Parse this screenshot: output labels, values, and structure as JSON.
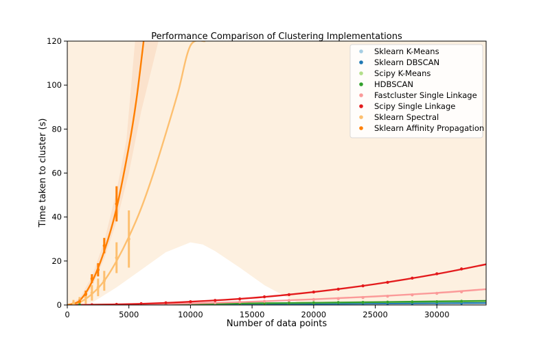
{
  "chart_data": {
    "type": "line",
    "title": "Performance Comparison of Clustering Implementations",
    "xlabel": "Number of data points",
    "ylabel": "Time taken to cluster (s)",
    "xlim": [
      0,
      34000
    ],
    "ylim": [
      0,
      120
    ],
    "xticks": [
      0,
      5000,
      10000,
      15000,
      20000,
      25000,
      30000
    ],
    "yticks": [
      0,
      20,
      40,
      60,
      80,
      100,
      120
    ],
    "grid": false,
    "legend_position": "top-right",
    "series": [
      {
        "name": "Sklearn K-Means",
        "color": "#a6cee3",
        "points": [
          [
            1000,
            0.05
          ],
          [
            2000,
            0.08
          ],
          [
            4000,
            0.12
          ],
          [
            6000,
            0.18
          ],
          [
            8000,
            0.22
          ],
          [
            10000,
            0.28
          ],
          [
            12000,
            0.32
          ],
          [
            14000,
            0.38
          ],
          [
            16000,
            0.42
          ],
          [
            18000,
            0.48
          ],
          [
            20000,
            0.52
          ],
          [
            22000,
            0.58
          ],
          [
            24000,
            0.62
          ],
          [
            26000,
            0.68
          ],
          [
            28000,
            0.72
          ],
          [
            30000,
            0.78
          ],
          [
            32000,
            0.82
          ]
        ],
        "fit": [
          [
            0,
            0
          ],
          [
            34000,
            0.9
          ]
        ]
      },
      {
        "name": "Sklearn DBSCAN",
        "color": "#1f78b4",
        "points": [
          [
            1000,
            0.05
          ],
          [
            2000,
            0.1
          ],
          [
            4000,
            0.15
          ],
          [
            6000,
            0.2
          ],
          [
            8000,
            0.25
          ],
          [
            10000,
            0.3
          ],
          [
            12000,
            0.35
          ],
          [
            14000,
            0.4
          ],
          [
            16000,
            0.45
          ],
          [
            18000,
            0.5
          ],
          [
            20000,
            0.55
          ],
          [
            22000,
            0.6
          ],
          [
            24000,
            0.65
          ],
          [
            26000,
            0.7
          ],
          [
            28000,
            0.75
          ],
          [
            30000,
            0.8
          ],
          [
            32000,
            0.85
          ]
        ],
        "fit": [
          [
            0,
            0
          ],
          [
            34000,
            0.9
          ]
        ]
      },
      {
        "name": "Scipy K-Means",
        "color": "#b2df8a",
        "points": [
          [
            1000,
            0.05
          ],
          [
            2000,
            0.1
          ],
          [
            4000,
            0.2
          ],
          [
            6000,
            0.3
          ],
          [
            8000,
            0.4
          ],
          [
            10000,
            0.5
          ],
          [
            12000,
            0.6
          ],
          [
            14000,
            0.7
          ],
          [
            16000,
            0.8
          ],
          [
            18000,
            0.9
          ],
          [
            20000,
            1.0
          ],
          [
            22000,
            1.1
          ],
          [
            24000,
            1.2
          ],
          [
            26000,
            1.3
          ],
          [
            28000,
            1.4
          ],
          [
            30000,
            1.5
          ],
          [
            32000,
            1.6
          ]
        ],
        "fit": [
          [
            0,
            0
          ],
          [
            34000,
            1.7
          ]
        ]
      },
      {
        "name": "HDBSCAN",
        "color": "#33a02c",
        "points": [
          [
            1000,
            0.05
          ],
          [
            2000,
            0.1
          ],
          [
            4000,
            0.2
          ],
          [
            6000,
            0.3
          ],
          [
            8000,
            0.4
          ],
          [
            10000,
            0.5
          ],
          [
            12000,
            0.6
          ],
          [
            14000,
            0.7
          ],
          [
            16000,
            0.8
          ],
          [
            18000,
            0.9
          ],
          [
            20000,
            1.0
          ],
          [
            22000,
            1.1
          ],
          [
            24000,
            1.2
          ],
          [
            26000,
            1.3
          ],
          [
            28000,
            1.4
          ],
          [
            30000,
            1.5
          ],
          [
            32000,
            1.7
          ]
        ],
        "fit": [
          [
            0,
            0
          ],
          [
            10000,
            0.5
          ],
          [
            20000,
            1.0
          ],
          [
            34000,
            1.9
          ]
        ]
      },
      {
        "name": "Fastcluster Single Linkage",
        "color": "#fb9a99",
        "points": [
          [
            2000,
            0.1
          ],
          [
            4000,
            0.2
          ],
          [
            6000,
            0.3
          ],
          [
            8000,
            0.6
          ],
          [
            10000,
            0.8
          ],
          [
            12000,
            1.0
          ],
          [
            14000,
            1.4
          ],
          [
            16000,
            1.7
          ],
          [
            18000,
            2.1
          ],
          [
            20000,
            2.5
          ],
          [
            22000,
            2.9
          ],
          [
            24000,
            3.4
          ],
          [
            26000,
            4.0
          ],
          [
            28000,
            4.6
          ],
          [
            30000,
            5.3
          ],
          [
            32000,
            6.0
          ]
        ],
        "fit": [
          [
            0,
            0
          ],
          [
            5000,
            0.2
          ],
          [
            10000,
            0.7
          ],
          [
            15000,
            1.5
          ],
          [
            20000,
            2.6
          ],
          [
            25000,
            3.9
          ],
          [
            30000,
            5.5
          ],
          [
            34000,
            7.2
          ]
        ]
      },
      {
        "name": "Scipy Single Linkage",
        "color": "#e31a1c",
        "points": [
          [
            2000,
            0.1
          ],
          [
            4000,
            0.3
          ],
          [
            6000,
            0.6
          ],
          [
            8000,
            1.0
          ],
          [
            10000,
            1.5
          ],
          [
            12000,
            2.1
          ],
          [
            14000,
            2.8
          ],
          [
            16000,
            3.7
          ],
          [
            18000,
            4.7
          ],
          [
            20000,
            5.9
          ],
          [
            22000,
            7.2
          ],
          [
            24000,
            8.7
          ],
          [
            26000,
            10.3
          ],
          [
            28000,
            12.2
          ],
          [
            30000,
            14.2
          ],
          [
            32000,
            16.4
          ]
        ],
        "fit": [
          [
            0,
            0
          ],
          [
            5000,
            0.4
          ],
          [
            10000,
            1.5
          ],
          [
            15000,
            3.2
          ],
          [
            20000,
            5.9
          ],
          [
            25000,
            9.5
          ],
          [
            30000,
            14.1
          ],
          [
            34000,
            18.5
          ]
        ]
      },
      {
        "name": "Sklearn Spectral",
        "color": "#fdbf6f",
        "points": [
          [
            500,
            0.8
          ],
          [
            1000,
            1.6
          ],
          [
            1500,
            3.5
          ],
          [
            2000,
            5.5
          ],
          [
            2500,
            8.0
          ],
          [
            3000,
            11.0
          ],
          [
            4000,
            21.5
          ],
          [
            5000,
            30.0
          ]
        ],
        "errors": [
          [
            500,
            1.5
          ],
          [
            1000,
            2.0
          ],
          [
            1500,
            3.0
          ],
          [
            2000,
            3.5
          ],
          [
            2500,
            4.0
          ],
          [
            3000,
            4.5
          ],
          [
            4000,
            7.0
          ],
          [
            5000,
            13.0
          ]
        ],
        "fit": [
          [
            0,
            0
          ],
          [
            1000,
            1.2
          ],
          [
            2000,
            5.0
          ],
          [
            3000,
            11.0
          ],
          [
            4000,
            20.0
          ],
          [
            5000,
            31.0
          ],
          [
            6000,
            44.0
          ],
          [
            7000,
            60.0
          ],
          [
            8000,
            78.0
          ],
          [
            9000,
            97.0
          ],
          [
            10000,
            118.0
          ],
          [
            11200,
            120.0
          ]
        ],
        "band": {
          "upper_all": 120,
          "lower": [
            [
              0,
              0
            ],
            [
              2000,
              1.0
            ],
            [
              4000,
              8.0
            ],
            [
              6000,
              16.0
            ],
            [
              8000,
              24.0
            ],
            [
              10000,
              28.5
            ],
            [
              11000,
              27.5
            ],
            [
              12000,
              24.5
            ],
            [
              14000,
              17.0
            ],
            [
              16000,
              9.0
            ],
            [
              18000,
              3.0
            ],
            [
              19200,
              0
            ]
          ]
        }
      },
      {
        "name": "Sklearn Affinity Propagation",
        "color": "#ff7f00",
        "points": [
          [
            1000,
            1.5
          ],
          [
            1500,
            5.0
          ],
          [
            2000,
            12.0
          ],
          [
            2500,
            16.0
          ],
          [
            3000,
            27.0
          ],
          [
            4000,
            46.0
          ]
        ],
        "errors": [
          [
            1000,
            1.0
          ],
          [
            1500,
            1.5
          ],
          [
            2000,
            2.0
          ],
          [
            2500,
            3.0
          ],
          [
            3000,
            3.5
          ],
          [
            4000,
            8.0
          ]
        ],
        "fit": [
          [
            0,
            0
          ],
          [
            1000,
            2.0
          ],
          [
            2000,
            10.5
          ],
          [
            3000,
            24.5
          ],
          [
            4000,
            44.0
          ],
          [
            5000,
            72.0
          ],
          [
            5600,
            93.0
          ],
          [
            6200,
            120.0
          ]
        ],
        "band": {
          "lower": [
            [
              0,
              0
            ],
            [
              1000,
              1.0
            ],
            [
              2000,
              8.0
            ],
            [
              3000,
              21.0
            ],
            [
              4000,
              38.0
            ],
            [
              5000,
              60.0
            ],
            [
              6000,
              88.0
            ],
            [
              7400,
              120.0
            ]
          ],
          "upper": [
            [
              0,
              0
            ],
            [
              1000,
              3.0
            ],
            [
              2000,
              13.0
            ],
            [
              3000,
              29.0
            ],
            [
              4000,
              52.0
            ],
            [
              4800,
              75.0
            ],
            [
              5500,
              120.0
            ]
          ]
        }
      }
    ]
  }
}
